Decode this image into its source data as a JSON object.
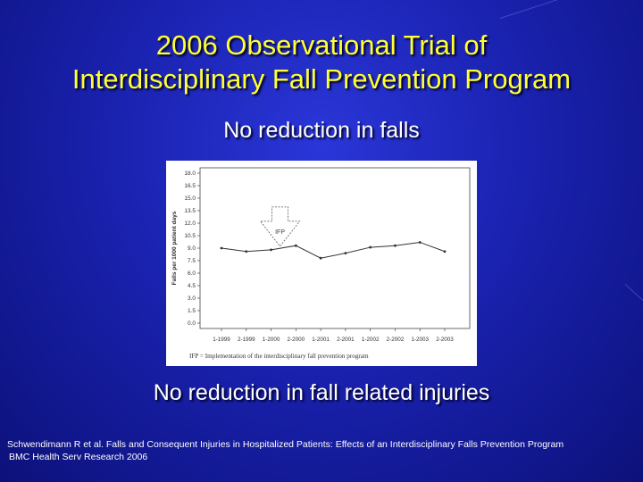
{
  "slide": {
    "title_line1": "2006 Observational Trial of",
    "title_line2": "Interdisciplinary Fall Prevention Program",
    "subtitle": "No reduction in falls",
    "subtitle2": "No reduction in fall related injuries",
    "citation_line1": "Schwendimann R et al. Falls and Consequent Injuries in Hospitalized Patients: Effects of an Interdisciplinary Falls Prevention Program",
    "citation_line2": "BMC Health Serv Research 2006"
  },
  "chart_data": {
    "type": "line",
    "title": "",
    "xlabel": "",
    "ylabel": "Falls per 1000 patient days",
    "categories": [
      "1-1999",
      "2-1999",
      "1-2000",
      "2-2000",
      "1-2001",
      "2-2001",
      "1-2002",
      "2-2002",
      "1-2003",
      "2-2003"
    ],
    "values": [
      9.0,
      8.6,
      8.8,
      9.3,
      7.8,
      8.4,
      9.1,
      9.3,
      9.7,
      8.6
    ],
    "ylim": [
      0,
      18
    ],
    "yticks": [
      "18.0",
      "16.5",
      "15.0",
      "13.5",
      "12.0",
      "10.5",
      "9.0",
      "7.5",
      "6.0",
      "4.5",
      "3.0",
      "1.5",
      "0.0"
    ],
    "annotation_label": "IFP",
    "footnote": "IFP = Implementation of the interdisciplinary fall prevention program",
    "colors": {
      "line": "#333333",
      "frame": "#444444"
    }
  }
}
